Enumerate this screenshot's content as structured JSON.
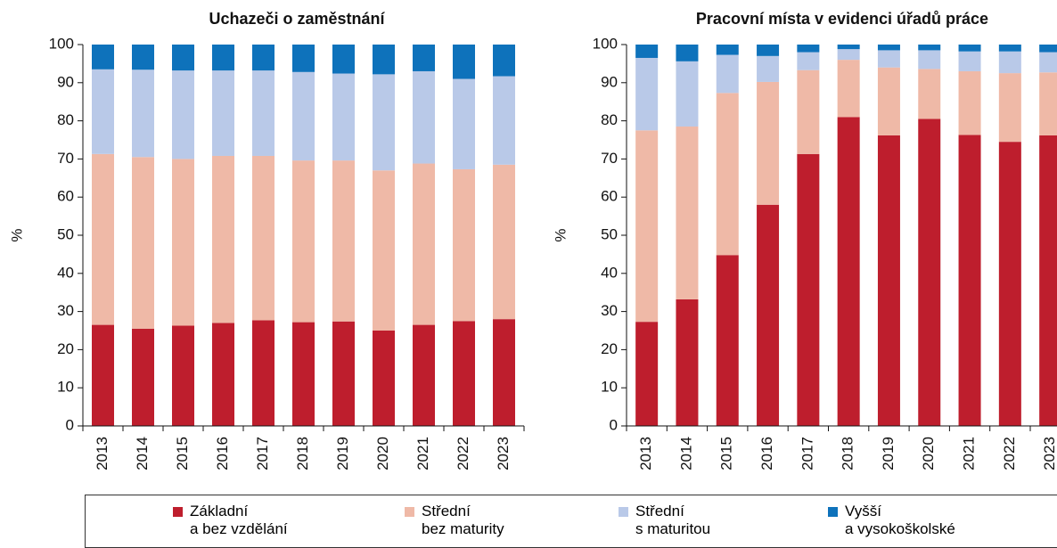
{
  "chart_data": [
    {
      "type": "bar",
      "stacked": true,
      "title": "Uchazeči o zaměstnání",
      "y_label": "%",
      "categories": [
        "2013",
        "2014",
        "2015",
        "2016",
        "2017",
        "2018",
        "2019",
        "2020",
        "2021",
        "2022",
        "2023"
      ],
      "ylim": [
        0,
        100
      ],
      "yticks": [
        0,
        10,
        20,
        30,
        40,
        50,
        60,
        70,
        80,
        90,
        100
      ],
      "grid": false,
      "series": [
        {
          "name": "Základní\na bez vzdělání",
          "color": "#be1e2d",
          "values": [
            26.5,
            25.5,
            26.3,
            27,
            27.7,
            27.2,
            27.4,
            25,
            26.5,
            27.5,
            28
          ]
        },
        {
          "name": "Střední\nbez maturity",
          "color": "#efb9a7",
          "values": [
            44.8,
            45,
            43.7,
            43.8,
            43.1,
            42.4,
            42.2,
            42,
            42.3,
            39.8,
            40.5
          ]
        },
        {
          "name": "Střední\ns maturitou",
          "color": "#b9c9e8",
          "values": [
            22.2,
            22.9,
            23.2,
            22.4,
            22.4,
            23.2,
            22.8,
            25.2,
            24.2,
            23.7,
            23.2
          ]
        },
        {
          "name": "Vyšší\na vysokoškolské",
          "color": "#0e72bb",
          "values": [
            6.5,
            6.6,
            6.8,
            6.8,
            6.8,
            7.2,
            7.6,
            7.8,
            7,
            9,
            8.3
          ]
        }
      ]
    },
    {
      "type": "bar",
      "stacked": true,
      "title": "Pracovní místa v evidenci úřadů práce",
      "y_label": "%",
      "categories": [
        "2013",
        "2014",
        "2015",
        "2016",
        "2017",
        "2018",
        "2019",
        "2020",
        "2021",
        "2022",
        "2023"
      ],
      "ylim": [
        0,
        100
      ],
      "yticks": [
        0,
        10,
        20,
        30,
        40,
        50,
        60,
        70,
        80,
        90,
        100
      ],
      "grid": false,
      "series": [
        {
          "name": "Základní\na bez vzdělání",
          "color": "#be1e2d",
          "values": [
            27.3,
            33.2,
            44.8,
            58,
            71.3,
            81,
            76.2,
            80.5,
            76.3,
            74.5,
            76.2
          ]
        },
        {
          "name": "Střední\nbez maturity",
          "color": "#efb9a7",
          "values": [
            50.2,
            45.3,
            42.5,
            32.2,
            22,
            15,
            17.8,
            13.1,
            16.7,
            18,
            16.5
          ]
        },
        {
          "name": "Střední\ns maturitou",
          "color": "#b9c9e8",
          "values": [
            19,
            17.1,
            10,
            6.8,
            4.7,
            2.8,
            4.5,
            4.9,
            5.2,
            5.7,
            5.3
          ]
        },
        {
          "name": "Vyšší\na vysokoškolské",
          "color": "#0e72bb",
          "values": [
            3.5,
            4.4,
            2.7,
            3,
            2,
            1.2,
            1.5,
            1.5,
            1.8,
            1.8,
            2
          ]
        }
      ]
    }
  ]
}
